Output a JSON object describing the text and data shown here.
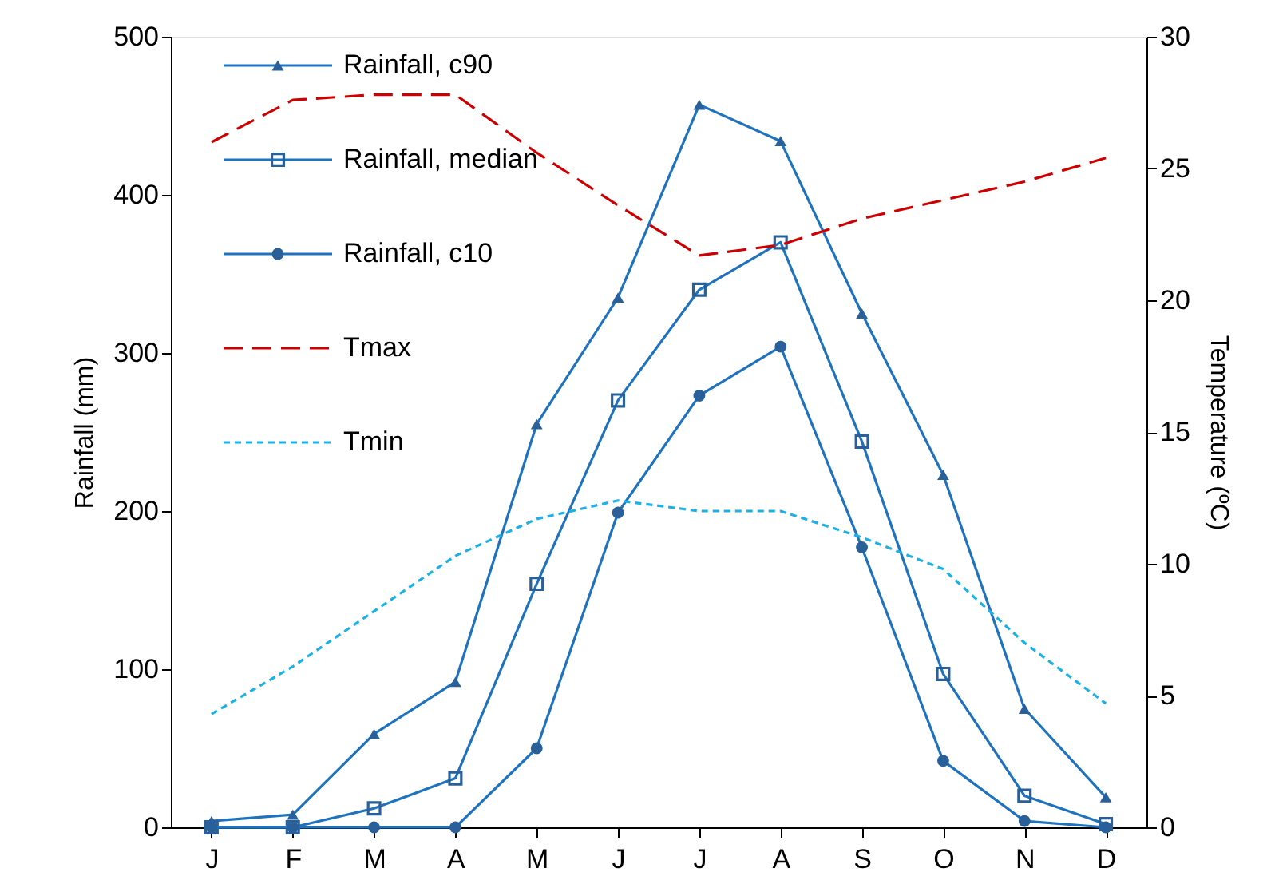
{
  "chart_data": {
    "type": "line",
    "categories": [
      "J",
      "F",
      "M",
      "A",
      "M",
      "J",
      "J",
      "A",
      "S",
      "O",
      "N",
      "D"
    ],
    "ylabel": "Rainfall (mm)",
    "y2label": "Temperature (ºC)",
    "ylim": [
      0,
      500
    ],
    "yticks": [
      0,
      100,
      200,
      300,
      400,
      500
    ],
    "y2lim": [
      0,
      30
    ],
    "y2ticks": [
      0,
      5,
      10,
      15,
      20,
      25,
      30
    ],
    "grid": false,
    "legend": "top left",
    "series": [
      {
        "name": "Rainfall, c90",
        "color": "#1f72bd",
        "marker": "triangle",
        "line_style": "solid",
        "values": [
          4,
          8,
          59,
          92,
          255,
          335,
          457,
          434,
          325,
          223,
          75,
          19
        ]
      },
      {
        "name": "Rainfall, median",
        "color": "#1f72bd",
        "marker": "square",
        "line_style": "solid",
        "values": [
          0,
          0,
          12,
          31,
          154,
          270,
          340,
          370,
          244,
          97,
          20,
          2
        ]
      },
      {
        "name": "Rainfall, c10",
        "color": "#1f72bd",
        "marker": "circle",
        "line_style": "solid",
        "values": [
          0,
          0,
          0,
          0,
          50,
          199,
          273,
          304,
          177,
          42,
          4,
          0
        ]
      },
      {
        "name": "Tmax",
        "color": "#cc0000",
        "marker": "none",
        "line_style": "dashed",
        "axis": "y2",
        "values": [
          26.0,
          27.6,
          27.8,
          27.8,
          25.6,
          23.6,
          21.7,
          22.1,
          23.1,
          23.8,
          24.5,
          25.4
        ]
      },
      {
        "name": "Tmin",
        "color": "#1ab0e8",
        "marker": "none",
        "line_style": "dotted",
        "axis": "y2",
        "values": [
          4.3,
          6.1,
          8.2,
          10.3,
          11.7,
          12.4,
          12.0,
          12.0,
          11.0,
          9.8,
          7.0,
          4.7
        ]
      }
    ]
  }
}
